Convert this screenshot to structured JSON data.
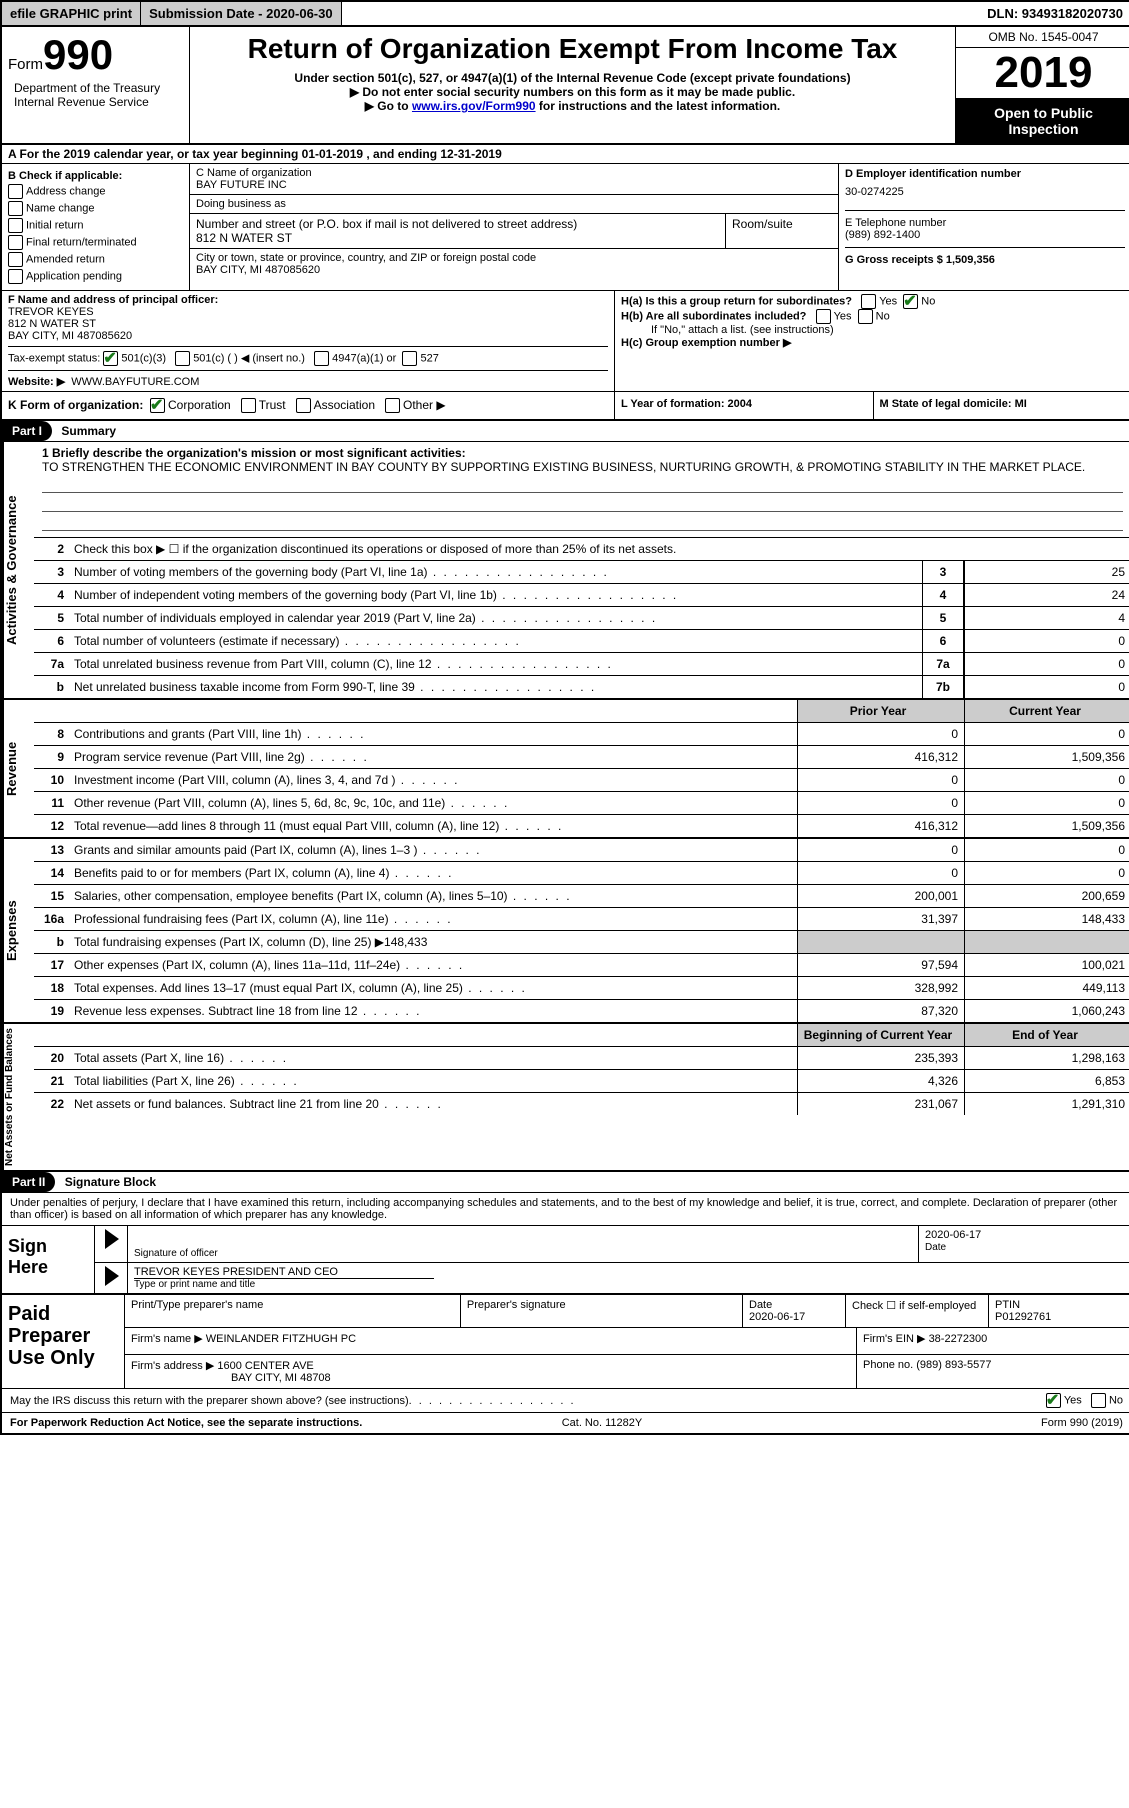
{
  "top_bar": {
    "efile": "efile GRAPHIC print",
    "submission_label": "Submission Date - 2020-06-30",
    "dln": "DLN: 93493182020730"
  },
  "header": {
    "form_word": "Form",
    "form_num": "990",
    "title": "Return of Organization Exempt From Income Tax",
    "subtitle": "Under section 501(c), 527, or 4947(a)(1) of the Internal Revenue Code (except private foundations)",
    "instr1": "▶ Do not enter social security numbers on this form as it may be made public.",
    "instr2_pre": "▶ Go to ",
    "instr2_link": "www.irs.gov/Form990",
    "instr2_post": " for instructions and the latest information.",
    "omb": "OMB No. 1545-0047",
    "year": "2019",
    "public1": "Open to Public",
    "public2": "Inspection",
    "dept1": "Department of the Treasury",
    "dept2": "Internal Revenue Service"
  },
  "row_a": "A For the 2019 calendar year, or tax year beginning 01-01-2019    , and ending 12-31-2019",
  "col_b": {
    "label": "B Check if applicable:",
    "opts": [
      "Address change",
      "Name change",
      "Initial return",
      "Final return/terminated",
      "Amended return",
      "Application pending"
    ]
  },
  "col_c": {
    "name_label": "C Name of organization",
    "name": "BAY FUTURE INC",
    "dba_label": "Doing business as",
    "addr_label": "Number and street (or P.O. box if mail is not delivered to street address)",
    "room_label": "Room/suite",
    "addr": "812 N WATER ST",
    "city_label": "City or town, state or province, country, and ZIP or foreign postal code",
    "city": "BAY CITY, MI  487085620"
  },
  "col_d": {
    "ein_label": "D Employer identification number",
    "ein": "30-0274225",
    "tel_label": "E Telephone number",
    "tel": "(989) 892-1400",
    "gross_label": "G Gross receipts $ 1,509,356"
  },
  "block_f": {
    "f_label": "F Name and address of principal officer:",
    "f_name": "TREVOR KEYES",
    "f_addr1": "812 N WATER ST",
    "f_addr2": "BAY CITY, MI  487085620",
    "tax_label": "Tax-exempt status:",
    "tax_501c3": "501(c)(3)",
    "tax_501c": "501(c) (  ) ◀ (insert no.)",
    "tax_4947": "4947(a)(1) or",
    "tax_527": "527",
    "website_label": "Website: ▶",
    "website": "WWW.BAYFUTURE.COM"
  },
  "block_h": {
    "h_a": "H(a)  Is this a group return for subordinates?",
    "h_b": "H(b)  Are all subordinates included?",
    "h_b_note": "If \"No,\" attach a list. (see instructions)",
    "h_c": "H(c)  Group exemption number ▶",
    "yes": "Yes",
    "no": "No"
  },
  "row_k": {
    "label": "K Form of organization:",
    "opts": [
      "Corporation",
      "Trust",
      "Association",
      "Other ▶"
    ],
    "l_label": "L Year of formation: 2004",
    "m_label": "M State of legal domicile: MI"
  },
  "parts": {
    "p1_header": "Part I",
    "p1_title": "Summary",
    "p2_header": "Part II",
    "p2_title": "Signature Block"
  },
  "mission": {
    "label": "1  Briefly describe the organization's mission or most significant activities:",
    "text": "TO STRENGTHEN THE ECONOMIC ENVIRONMENT IN BAY COUNTY BY SUPPORTING EXISTING BUSINESS, NURTURING GROWTH, & PROMOTING STABILITY IN THE MARKET PLACE."
  },
  "side_labels": {
    "gov": "Activities & Governance",
    "rev": "Revenue",
    "exp": "Expenses",
    "net": "Net Assets or Fund Balances"
  },
  "gov_lines": [
    {
      "n": "2",
      "label": "Check this box ▶ ☐  if the organization discontinued its operations or disposed of more than 25% of its net assets."
    },
    {
      "n": "3",
      "label": "Number of voting members of the governing body (Part VI, line 1a)",
      "box": "3",
      "val": "25"
    },
    {
      "n": "4",
      "label": "Number of independent voting members of the governing body (Part VI, line 1b)",
      "box": "4",
      "val": "24"
    },
    {
      "n": "5",
      "label": "Total number of individuals employed in calendar year 2019 (Part V, line 2a)",
      "box": "5",
      "val": "4"
    },
    {
      "n": "6",
      "label": "Total number of volunteers (estimate if necessary)",
      "box": "6",
      "val": "0"
    },
    {
      "n": "7a",
      "label": "Total unrelated business revenue from Part VIII, column (C), line 12",
      "box": "7a",
      "val": "0"
    },
    {
      "n": "b",
      "label": "Net unrelated business taxable income from Form 990-T, line 39",
      "box": "7b",
      "val": "0"
    }
  ],
  "two_col_headers": {
    "prior": "Prior Year",
    "current": "Current Year"
  },
  "rev_lines": [
    {
      "n": "8",
      "label": "Contributions and grants (Part VIII, line 1h)",
      "p": "0",
      "c": "0"
    },
    {
      "n": "9",
      "label": "Program service revenue (Part VIII, line 2g)",
      "p": "416,312",
      "c": "1,509,356"
    },
    {
      "n": "10",
      "label": "Investment income (Part VIII, column (A), lines 3, 4, and 7d )",
      "p": "0",
      "c": "0"
    },
    {
      "n": "11",
      "label": "Other revenue (Part VIII, column (A), lines 5, 6d, 8c, 9c, 10c, and 11e)",
      "p": "0",
      "c": "0"
    },
    {
      "n": "12",
      "label": "Total revenue—add lines 8 through 11 (must equal Part VIII, column (A), line 12)",
      "p": "416,312",
      "c": "1,509,356"
    }
  ],
  "exp_lines": [
    {
      "n": "13",
      "label": "Grants and similar amounts paid (Part IX, column (A), lines 1–3 )",
      "p": "0",
      "c": "0"
    },
    {
      "n": "14",
      "label": "Benefits paid to or for members (Part IX, column (A), line 4)",
      "p": "0",
      "c": "0"
    },
    {
      "n": "15",
      "label": "Salaries, other compensation, employee benefits (Part IX, column (A), lines 5–10)",
      "p": "200,001",
      "c": "200,659"
    },
    {
      "n": "16a",
      "label": "Professional fundraising fees (Part IX, column (A), line 11e)",
      "p": "31,397",
      "c": "148,433"
    },
    {
      "n": "b",
      "label": "Total fundraising expenses (Part IX, column (D), line 25) ▶148,433",
      "shaded": true
    },
    {
      "n": "17",
      "label": "Other expenses (Part IX, column (A), lines 11a–11d, 11f–24e)",
      "p": "97,594",
      "c": "100,021"
    },
    {
      "n": "18",
      "label": "Total expenses. Add lines 13–17 (must equal Part IX, column (A), line 25)",
      "p": "328,992",
      "c": "449,113"
    },
    {
      "n": "19",
      "label": "Revenue less expenses. Subtract line 18 from line 12",
      "p": "87,320",
      "c": "1,060,243"
    }
  ],
  "net_headers": {
    "begin": "Beginning of Current Year",
    "end": "End of Year"
  },
  "net_lines": [
    {
      "n": "20",
      "label": "Total assets (Part X, line 16)",
      "p": "235,393",
      "c": "1,298,163"
    },
    {
      "n": "21",
      "label": "Total liabilities (Part X, line 26)",
      "p": "4,326",
      "c": "6,853"
    },
    {
      "n": "22",
      "label": "Net assets or fund balances. Subtract line 21 from line 20",
      "p": "231,067",
      "c": "1,291,310"
    }
  ],
  "sig": {
    "declaration": "Under penalties of perjury, I declare that I have examined this return, including accompanying schedules and statements, and to the best of my knowledge and belief, it is true, correct, and complete. Declaration of preparer (other than officer) is based on all information of which preparer has any knowledge.",
    "sign_here": "Sign Here",
    "sig_officer_label": "Signature of officer",
    "date_label": "Date",
    "date": "2020-06-17",
    "name_title": "TREVOR KEYES  PRESIDENT AND CEO",
    "name_title_label": "Type or print name and title"
  },
  "paid": {
    "title": "Paid Preparer Use Only",
    "print_name_label": "Print/Type preparer's name",
    "sig_label": "Preparer's signature",
    "date_label": "Date",
    "date": "2020-06-17",
    "check_label": "Check ☐ if self-employed",
    "ptin_label": "PTIN",
    "ptin": "P01292761",
    "firm_name_label": "Firm's name    ▶",
    "firm_name": "WEINLANDER FITZHUGH PC",
    "firm_ein_label": "Firm's EIN ▶",
    "firm_ein": "38-2272300",
    "firm_addr_label": "Firm's address ▶",
    "firm_addr1": "1600 CENTER AVE",
    "firm_addr2": "BAY CITY, MI  48708",
    "phone_label": "Phone no.",
    "phone": "(989) 893-5577"
  },
  "footer": {
    "discuss": "May the IRS discuss this return with the preparer shown above? (see instructions)",
    "paperwork": "For Paperwork Reduction Act Notice, see the separate instructions.",
    "cat": "Cat. No. 11282Y",
    "form": "Form 990 (2019)",
    "yes": "Yes",
    "no": "No"
  }
}
